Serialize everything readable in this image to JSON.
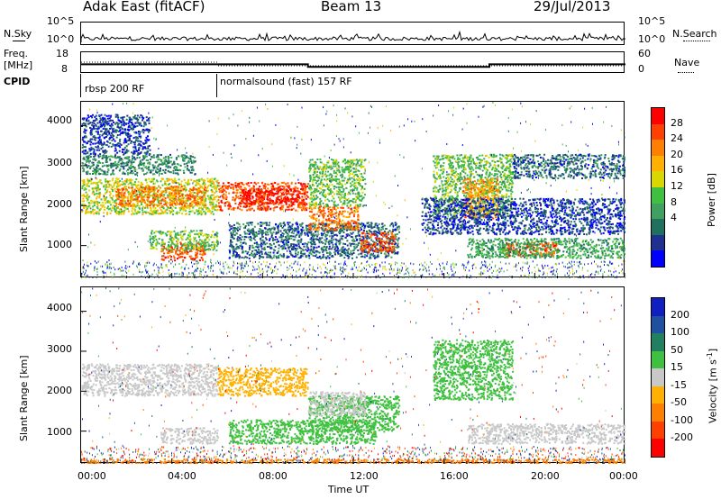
{
  "header": {
    "title": "Adak East (fitACF)",
    "beam": "Beam 13",
    "date": "29/Jul/2013"
  },
  "top_panels": {
    "nsky_label": "N.Sky",
    "nsky_ticks": [
      "10^5",
      "10^0"
    ],
    "nsearch_label": "N.Search",
    "nsearch_ticks": [
      "10^5",
      "10^0"
    ],
    "freq_label": "Freq.",
    "freq_unit": "[MHz]",
    "freq_ticks": [
      "18",
      "8"
    ],
    "nave_label": "Nave",
    "nave_ticks": [
      "60",
      "0"
    ],
    "cpid_label": "CPID",
    "cpid_modes": [
      {
        "label": "rbsp 200 RF",
        "start": "00:00",
        "end": "06:00"
      },
      {
        "label": "normalsound (fast) 157 RF",
        "start": "06:00",
        "end": "00:00"
      }
    ],
    "freq_series": {
      "hours": [
        0,
        10,
        10,
        18,
        18,
        24
      ],
      "mhz": [
        12.2,
        12.2,
        10.6,
        10.6,
        12.2,
        12.2
      ]
    }
  },
  "axes": {
    "xlabel": "Time UT",
    "x_ticks": [
      "00:00",
      "04:00",
      "08:00",
      "12:00",
      "16:00",
      "20:00",
      "00:00"
    ],
    "ylabel": "Slant Range [km]",
    "y_ticks": [
      "4000",
      "3000",
      "2000",
      "1000"
    ]
  },
  "power_colorbar": {
    "label": "Power [dB]",
    "ticks": [
      "28",
      "24",
      "20",
      "16",
      "12",
      "8",
      "4"
    ],
    "colors": [
      "#ff0000",
      "#ff4000",
      "#ff8000",
      "#ffb000",
      "#d8d800",
      "#40c040",
      "#40a060",
      "#207060",
      "#203090",
      "#0000ff"
    ]
  },
  "velocity_colorbar": {
    "label": "Velocity [m s",
    "label_sup": "-1",
    "label_end": "]",
    "ticks": [
      "200",
      "100",
      "50",
      "15",
      "-15",
      "-50",
      "-100",
      "-200"
    ],
    "colors": [
      "#1020c0",
      "#2050a0",
      "#208060",
      "#40c040",
      "#c8c8c8",
      "#ffb000",
      "#ff8000",
      "#ff4000",
      "#ff0000"
    ]
  },
  "chart_data": [
    {
      "type": "heatmap",
      "title": "Power",
      "xlabel": "Time UT",
      "ylabel": "Slant Range [km]",
      "xlim": [
        0,
        24
      ],
      "ylim": [
        180,
        4600
      ],
      "legend": "right",
      "blobs": [
        {
          "t0": 0.0,
          "t1": 6.0,
          "r0": 1800,
          "r1": 2700,
          "level": 17
        },
        {
          "t0": 1.5,
          "t1": 5.5,
          "r0": 2000,
          "r1": 2500,
          "level": 24
        },
        {
          "t0": 6.0,
          "t1": 10.0,
          "r0": 1900,
          "r1": 2600,
          "level": 26
        },
        {
          "t0": 7.0,
          "t1": 9.8,
          "r0": 2050,
          "r1": 2450,
          "level": 30
        },
        {
          "t0": 3.5,
          "t1": 5.5,
          "r0": 650,
          "r1": 1100,
          "level": 26
        },
        {
          "t0": 3.0,
          "t1": 6.0,
          "r0": 900,
          "r1": 1400,
          "level": 14
        },
        {
          "t0": 6.5,
          "t1": 14.0,
          "r0": 700,
          "r1": 1600,
          "level": 8
        },
        {
          "t0": 10.0,
          "t1": 12.2,
          "r0": 1400,
          "r1": 2000,
          "level": 24
        },
        {
          "t0": 12.3,
          "t1": 13.8,
          "r0": 850,
          "r1": 1350,
          "level": 26
        },
        {
          "t0": 10.0,
          "t1": 12.5,
          "r0": 2000,
          "r1": 3200,
          "level": 14
        },
        {
          "t0": 0.0,
          "t1": 5.0,
          "r0": 2800,
          "r1": 3300,
          "level": 10
        },
        {
          "t0": 0.0,
          "t1": 3.0,
          "r0": 3300,
          "r1": 4300,
          "level": 6
        },
        {
          "t0": 15.5,
          "t1": 19.0,
          "r0": 1800,
          "r1": 3300,
          "level": 14
        },
        {
          "t0": 16.8,
          "t1": 18.4,
          "r0": 1700,
          "r1": 2700,
          "level": 22
        },
        {
          "t0": 15.0,
          "t1": 24.0,
          "r0": 1300,
          "r1": 2200,
          "level": 6
        },
        {
          "t0": 18.5,
          "t1": 21.0,
          "r0": 750,
          "r1": 1100,
          "level": 26
        },
        {
          "t0": 17.0,
          "t1": 24.0,
          "r0": 700,
          "r1": 1200,
          "level": 12
        },
        {
          "t0": 19.0,
          "t1": 24.0,
          "r0": 2700,
          "r1": 3300,
          "level": 8
        }
      ]
    },
    {
      "type": "heatmap",
      "title": "Velocity",
      "xlabel": "Time UT",
      "ylabel": "Slant Range [km]",
      "xlim": [
        0,
        24
      ],
      "ylim": [
        180,
        4600
      ],
      "legend": "right",
      "blobs": [
        {
          "t0": 0.0,
          "t1": 6.0,
          "r0": 1900,
          "r1": 2700,
          "level": 0
        },
        {
          "t0": 6.0,
          "t1": 10.0,
          "r0": 1900,
          "r1": 2600,
          "level": -25
        },
        {
          "t0": 3.5,
          "t1": 6.0,
          "r0": 700,
          "r1": 1100,
          "level": 0
        },
        {
          "t0": 6.5,
          "t1": 13.0,
          "r0": 700,
          "r1": 1300,
          "level": 30
        },
        {
          "t0": 10.0,
          "t1": 14.0,
          "r0": 1000,
          "r1": 1900,
          "level": 25
        },
        {
          "t0": 10.0,
          "t1": 12.5,
          "r0": 1400,
          "r1": 2000,
          "level": 0
        },
        {
          "t0": 15.5,
          "t1": 19.0,
          "r0": 1800,
          "r1": 3300,
          "level": 25
        },
        {
          "t0": 17.0,
          "t1": 24.0,
          "r0": 700,
          "r1": 1200,
          "level": 0
        },
        {
          "t0": 0.0,
          "t1": 24.0,
          "r0": 200,
          "r1": 320,
          "level": -60
        }
      ]
    }
  ]
}
